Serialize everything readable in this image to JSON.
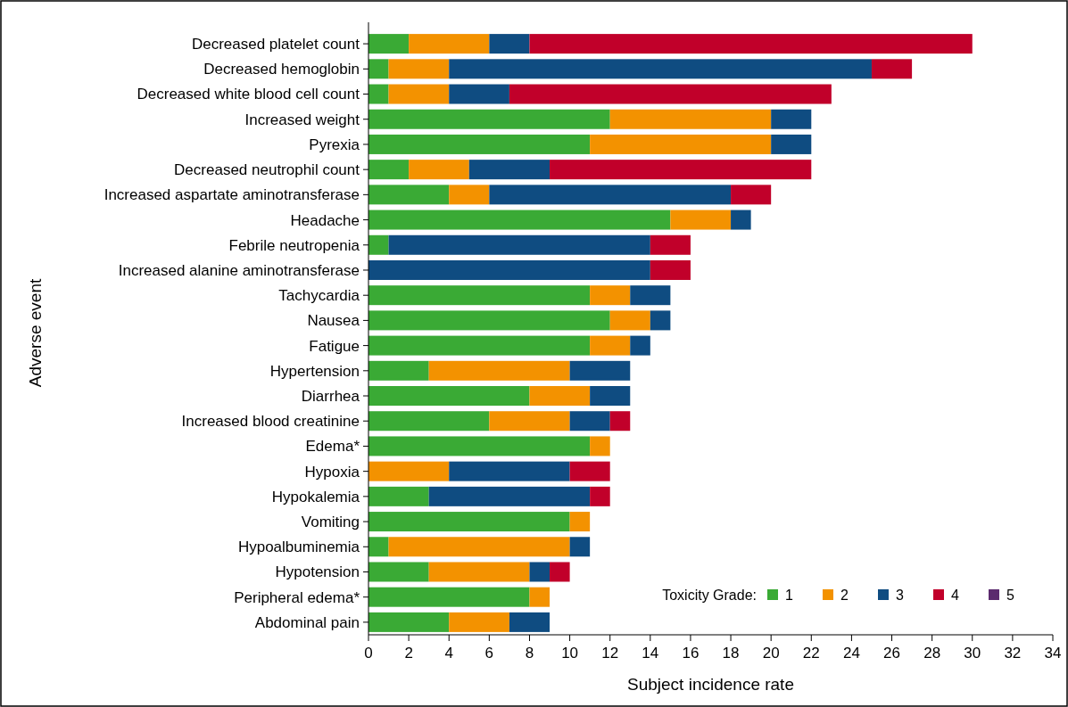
{
  "chart_data": {
    "type": "bar",
    "orientation": "horizontal",
    "stacked": true,
    "xlabel": "Subject incidence rate",
    "ylabel": "Adverse event",
    "legend_title": "Toxicity Grade:",
    "legend": "bottom right",
    "grid": false,
    "categories": [
      "Decreased platelet count",
      "Decreased hemoglobin",
      "Decreased white blood cell count",
      "Increased weight",
      "Pyrexia",
      "Decreased neutrophil count",
      "Increased aspartate aminotransferase",
      "Headache",
      "Febrile neutropenia",
      "Increased alanine aminotransferase",
      "Tachycardia",
      "Nausea",
      "Fatigue",
      "Hypertension",
      "Diarrhea",
      "Increased blood creatinine",
      "Edema*",
      "Hypoxia",
      "Hypokalemia",
      "Vomiting",
      "Hypoalbuminemia",
      "Hypotension",
      "Peripheral edema*",
      "Abdominal pain"
    ],
    "xlim": [
      0,
      34
    ],
    "xticks": [
      0,
      2,
      4,
      6,
      8,
      10,
      12,
      14,
      16,
      18,
      20,
      22,
      24,
      26,
      28,
      30,
      32,
      34
    ],
    "series": [
      {
        "name": "1",
        "color": "#3aaa35",
        "values": [
          2,
          1,
          1,
          12,
          11,
          2,
          4,
          15,
          1,
          0,
          11,
          12,
          11,
          3,
          8,
          6,
          11,
          0,
          3,
          10,
          1,
          3,
          8,
          4
        ]
      },
      {
        "name": "2",
        "color": "#f39200",
        "values": [
          4,
          3,
          3,
          8,
          9,
          3,
          2,
          3,
          0,
          0,
          2,
          2,
          2,
          7,
          3,
          4,
          1,
          4,
          0,
          1,
          9,
          5,
          1,
          3
        ]
      },
      {
        "name": "3",
        "color": "#0f4c81",
        "values": [
          2,
          21,
          3,
          2,
          2,
          4,
          12,
          1,
          13,
          14,
          2,
          1,
          1,
          3,
          2,
          2,
          0,
          6,
          8,
          0,
          1,
          1,
          0,
          2
        ]
      },
      {
        "name": "4",
        "color": "#c1002a",
        "values": [
          22,
          2,
          16,
          0,
          0,
          13,
          2,
          0,
          2,
          2,
          0,
          0,
          0,
          0,
          0,
          1,
          0,
          2,
          1,
          0,
          0,
          1,
          0,
          0
        ]
      },
      {
        "name": "5",
        "color": "#5b2a6e",
        "values": [
          0,
          0,
          0,
          0,
          0,
          0,
          0,
          0,
          0,
          0,
          0,
          0,
          0,
          0,
          0,
          0,
          0,
          0,
          0,
          0,
          0,
          0,
          0,
          0
        ]
      }
    ]
  }
}
